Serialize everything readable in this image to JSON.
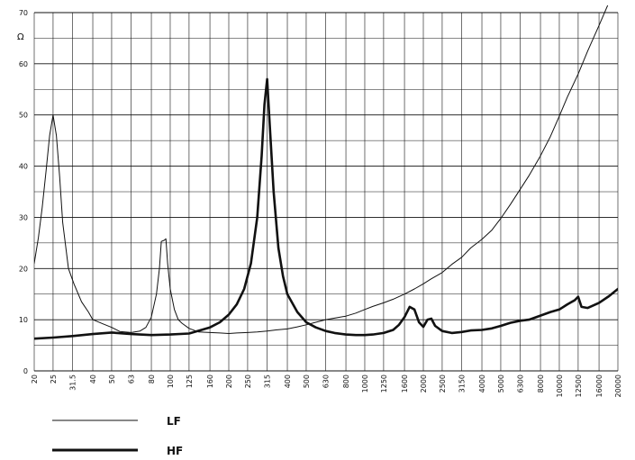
{
  "chart_data": {
    "type": "line",
    "ylabel": "Ω",
    "ylim": [
      0,
      70
    ],
    "y_ticks": [
      0,
      10,
      20,
      30,
      40,
      50,
      60,
      70
    ],
    "x_scale": "log",
    "x_ticks": [
      20,
      25,
      31.5,
      40,
      50,
      63,
      80,
      100,
      125,
      160,
      200,
      250,
      315,
      400,
      500,
      630,
      800,
      1000,
      1250,
      1600,
      2000,
      2500,
      3150,
      4000,
      5000,
      6300,
      8000,
      10000,
      12500,
      16000,
      20000
    ],
    "x_tick_labels": [
      "20",
      "25",
      "31.5",
      "40",
      "50",
      "63",
      "80",
      "100",
      "125",
      "160",
      "200",
      "250",
      "315",
      "400",
      "500",
      "630",
      "800",
      "1000",
      "1250",
      "1600",
      "2000",
      "2500",
      "3150",
      "4000",
      "5000",
      "6300",
      "8000",
      "10000",
      "12500",
      "16000",
      "20000"
    ],
    "grid": true,
    "legend_position": "bottom-left",
    "series": [
      {
        "name": "LF",
        "line": "thin",
        "x": [
          20,
          21,
          22,
          23,
          24,
          25,
          26,
          27,
          28,
          30,
          32,
          35,
          38,
          40,
          45,
          50,
          55,
          63,
          70,
          75,
          80,
          85,
          88,
          90,
          93,
          95,
          97,
          100,
          105,
          110,
          115,
          125,
          140,
          160,
          180,
          200,
          220,
          250,
          280,
          315,
          350,
          400,
          450,
          500,
          560,
          630,
          700,
          800,
          900,
          1000,
          1100,
          1250,
          1400,
          1600,
          1800,
          2000,
          2200,
          2500,
          2800,
          3150,
          3500,
          4000,
          4500,
          5000,
          5600,
          6300,
          7000,
          8000,
          9000,
          10000,
          11000,
          12500,
          14000,
          16000,
          18000,
          20000
        ],
        "y": [
          21,
          26,
          32,
          39,
          46,
          50,
          46,
          38,
          29,
          20,
          17,
          13.5,
          11.5,
          10,
          9.2,
          8.5,
          7.7,
          7.5,
          7.8,
          8.5,
          10.5,
          15,
          20,
          25.3,
          25.5,
          25.8,
          21,
          16,
          12,
          10,
          9.3,
          8.3,
          7.6,
          7.5,
          7.4,
          7.3,
          7.4,
          7.5,
          7.6,
          7.8,
          8,
          8.2,
          8.6,
          9,
          9.5,
          10,
          10.3,
          10.7,
          11.3,
          12,
          12.6,
          13.3,
          14,
          15,
          16,
          17,
          18,
          19.2,
          20.8,
          22.2,
          24,
          25.7,
          27.5,
          29.8,
          32.5,
          35.5,
          38.2,
          42,
          45.8,
          49.8,
          53.5,
          58,
          62.5,
          67.5,
          72,
          76
        ]
      },
      {
        "name": "HF",
        "line": "thick",
        "x": [
          20,
          25,
          31.5,
          40,
          50,
          63,
          80,
          100,
          125,
          160,
          180,
          200,
          220,
          240,
          260,
          280,
          295,
          305,
          315,
          325,
          340,
          360,
          380,
          400,
          450,
          500,
          560,
          630,
          700,
          800,
          900,
          1000,
          1100,
          1250,
          1400,
          1500,
          1600,
          1700,
          1800,
          1900,
          2000,
          2100,
          2200,
          2300,
          2500,
          2800,
          3150,
          3500,
          4000,
          4500,
          5000,
          5600,
          6300,
          7000,
          8000,
          9000,
          10000,
          11000,
          12000,
          12500,
          13000,
          14000,
          16000,
          18000,
          20000
        ],
        "y": [
          6.3,
          6.5,
          6.8,
          7.2,
          7.5,
          7.2,
          7,
          7.1,
          7.3,
          8.5,
          9.5,
          11,
          13,
          16,
          21,
          30,
          42,
          52,
          57,
          48,
          35,
          24,
          18.5,
          15,
          11.5,
          9.5,
          8.5,
          7.8,
          7.4,
          7.1,
          7,
          7,
          7.1,
          7.4,
          8,
          9,
          10.5,
          12.5,
          12,
          9.5,
          8.6,
          10,
          10.2,
          8.8,
          7.8,
          7.4,
          7.6,
          7.9,
          8,
          8.3,
          8.8,
          9.4,
          9.8,
          10,
          10.8,
          11.5,
          12,
          13,
          13.8,
          14.5,
          12.5,
          12.3,
          13.3,
          14.6,
          16
        ]
      }
    ]
  },
  "legend": [
    {
      "label": "LF",
      "weight": "thin"
    },
    {
      "label": "HF",
      "weight": "thick"
    }
  ]
}
